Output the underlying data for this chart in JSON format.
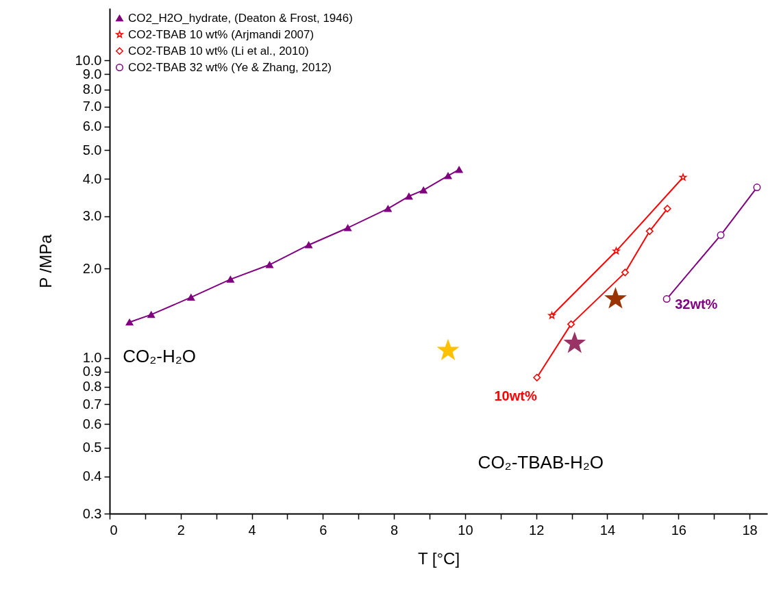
{
  "chart_data": {
    "type": "line",
    "xlabel": "T [°C]",
    "ylabel": "P /MPa",
    "log": "y",
    "grid": false,
    "legend": "top left",
    "xlim": [
      0,
      18.5
    ],
    "ylim": [
      0.3,
      15
    ],
    "xticks": [
      0,
      {
        "value": 1,
        "label": null
      },
      2,
      {
        "value": 3,
        "label": null
      },
      4,
      {
        "value": 5,
        "label": null
      },
      6,
      {
        "value": 7,
        "label": null
      },
      8,
      {
        "value": 9,
        "label": null
      },
      10,
      {
        "value": 11,
        "label": null
      },
      12,
      {
        "value": 13,
        "label": null
      },
      14,
      {
        "value": 15,
        "label": null
      },
      16,
      {
        "value": 17,
        "label": null
      },
      18
    ],
    "yticks": [
      {
        "value": 0.3,
        "label": "0.3"
      },
      {
        "value": 0.4,
        "label": "0.4"
      },
      {
        "value": 0.5,
        "label": "0.5"
      },
      {
        "value": 0.6,
        "label": "0.6"
      },
      {
        "value": 0.7,
        "label": "0.7"
      },
      {
        "value": 0.8,
        "label": "0.8"
      },
      {
        "value": 0.9,
        "label": "0.9"
      },
      {
        "value": 1,
        "label": "1.0"
      },
      {
        "value": 2,
        "label": "2.0"
      },
      {
        "value": 3,
        "label": "3.0"
      },
      {
        "value": 4,
        "label": "4.0"
      },
      {
        "value": 5,
        "label": "5.0"
      },
      {
        "value": 6,
        "label": "6.0"
      },
      {
        "value": 7,
        "label": "7.0"
      },
      {
        "value": 8,
        "label": "8.0"
      },
      {
        "value": 9,
        "label": "9.0"
      },
      {
        "value": 10,
        "label": "10.0"
      }
    ],
    "series": [
      {
        "name": "CO2_H2O_hydrate, (Deaton & Frost, 1946)",
        "marker": "triangle",
        "color": "#800080",
        "x": [
          0.56,
          1.17,
          2.29,
          3.4,
          4.5,
          5.6,
          6.7,
          7.83,
          8.42,
          8.83,
          9.52,
          9.83
        ],
        "values": [
          1.32,
          1.4,
          1.6,
          1.84,
          2.06,
          2.4,
          2.74,
          3.18,
          3.5,
          3.67,
          4.1,
          4.3
        ]
      },
      {
        "name": "CO2-TBAB 10 wt% (Arjmandi 2007)",
        "marker": "star",
        "color": "#ff0000",
        "x": [
          12.44,
          14.25,
          16.13
        ],
        "values": [
          1.39,
          2.29,
          4.05
        ]
      },
      {
        "name": "CO2-TBAB 10 wt% (Li et al., 2010)",
        "marker": "diamond",
        "color": "#ff0000",
        "x": [
          12.02,
          12.98,
          14.5,
          15.19,
          15.69
        ],
        "values": [
          0.86,
          1.3,
          1.94,
          2.67,
          3.18
        ]
      },
      {
        "name": "CO2-TBAB 32 wt% (Ye & Zhang, 2012)",
        "marker": "circle",
        "color": "#800080",
        "x": [
          15.67,
          17.19,
          18.21
        ],
        "values": [
          1.58,
          2.59,
          3.75
        ]
      },
      {
        "type": "scatter",
        "marker": "star",
        "color": "#ffc000",
        "x": [
          9.52
        ],
        "values": [
          1.06
        ]
      },
      {
        "type": "scatter",
        "marker": "star",
        "color": "#993366",
        "x": [
          13.08
        ],
        "values": [
          1.12
        ]
      },
      {
        "type": "scatter",
        "marker": "star",
        "color": "#993300",
        "x": [
          14.23
        ],
        "values": [
          1.58
        ]
      }
    ],
    "annotations": [
      "CO₂-H₂O",
      "CO₂-TBAB-H₂O",
      {
        "text": "10wt%",
        "x": 12.02,
        "y": 0.86
      },
      {
        "text": "32wt%",
        "x": 15.67,
        "y": 1.58
      }
    ]
  }
}
